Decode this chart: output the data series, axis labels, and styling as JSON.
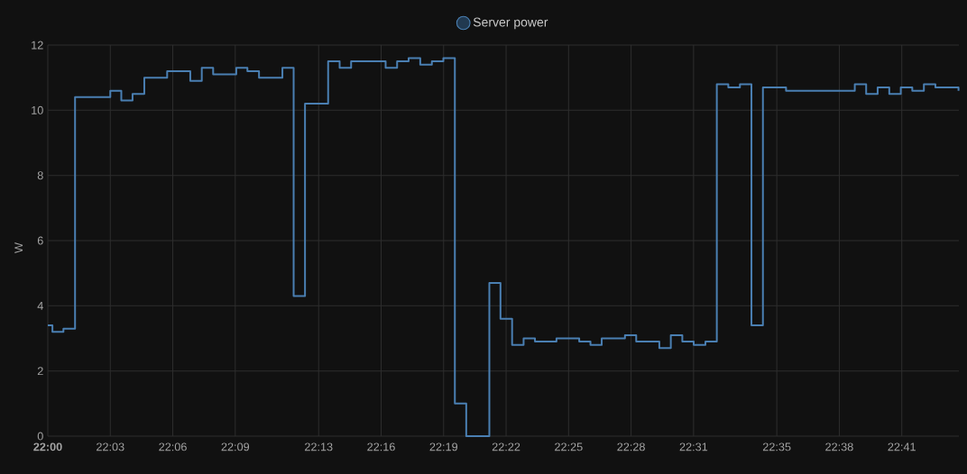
{
  "chart_data": {
    "type": "step",
    "ylabel": "W",
    "x": [
      22.0,
      22.0037,
      22.0125,
      22.0218,
      22.05,
      22.0588,
      22.0678,
      22.0772,
      22.0955,
      22.114,
      22.1232,
      22.1323,
      22.1508,
      22.1597,
      22.169,
      22.1877,
      22.1967,
      22.2058,
      22.2243,
      22.2335,
      22.2427,
      22.2703,
      22.2795,
      22.2887,
      22.298,
      22.3073,
      22.3165,
      22.3257,
      22.3348,
      22.3533,
      22.3622,
      22.3715,
      22.3807,
      22.3898,
      22.407,
      22.4252,
      22.4342,
      22.4432,
      22.4618,
      22.4708,
      22.4893,
      22.4985,
      22.5077,
      22.5168,
      22.5262,
      22.5353,
      22.5445,
      22.5538,
      22.563,
      22.5722,
      22.5907,
      22.6457,
      22.6548,
      22.664,
      22.6733,
      22.6825,
      22.6917,
      22.701,
      22.7102,
      22.7287
    ],
    "series": [
      {
        "name": "Server power",
        "color": "#4a7fb2",
        "values": [
          3.4,
          3.2,
          3.3,
          10.4,
          10.6,
          10.3,
          10.5,
          11.0,
          11.2,
          10.9,
          11.3,
          11.1,
          11.3,
          11.2,
          11.0,
          11.3,
          4.3,
          10.2,
          11.5,
          11.3,
          11.5,
          11.3,
          11.5,
          11.6,
          11.4,
          11.5,
          11.6,
          1.0,
          0,
          4.7,
          3.6,
          2.8,
          3.0,
          2.9,
          3.0,
          2.9,
          2.8,
          3.0,
          3.1,
          2.9,
          2.7,
          3.1,
          2.9,
          2.8,
          2.9,
          10.8,
          10.7,
          10.8,
          3.4,
          10.7,
          10.6,
          10.8,
          10.5,
          10.7,
          10.5,
          10.7,
          10.6,
          10.8,
          10.7,
          10.6
        ]
      }
    ],
    "xlim": [
      22,
      22.729
    ],
    "xticks": [
      {
        "value": 22,
        "label": "**22:00**"
      },
      {
        "value": 22.05,
        "label": "22:03"
      },
      {
        "value": 22.1,
        "label": "22:06"
      },
      {
        "value": 22.15,
        "label": "22:09"
      },
      {
        "value": 22.2167,
        "label": "22:13"
      },
      {
        "value": 22.2667,
        "label": "22:16"
      },
      {
        "value": 22.3167,
        "label": "22:19"
      },
      {
        "value": 22.3667,
        "label": "22:22"
      },
      {
        "value": 22.4167,
        "label": "22:25"
      },
      {
        "value": 22.4667,
        "label": "22:28"
      },
      {
        "value": 22.5167,
        "label": "22:31"
      },
      {
        "value": 22.5833,
        "label": "22:35"
      },
      {
        "value": 22.6333,
        "label": "22:38"
      },
      {
        "value": 22.6833,
        "label": "22:41"
      }
    ],
    "ylim": [
      0,
      12
    ],
    "yticks": [
      0,
      2,
      4,
      6,
      8,
      10,
      12
    ],
    "grid": true,
    "legend": "top"
  }
}
